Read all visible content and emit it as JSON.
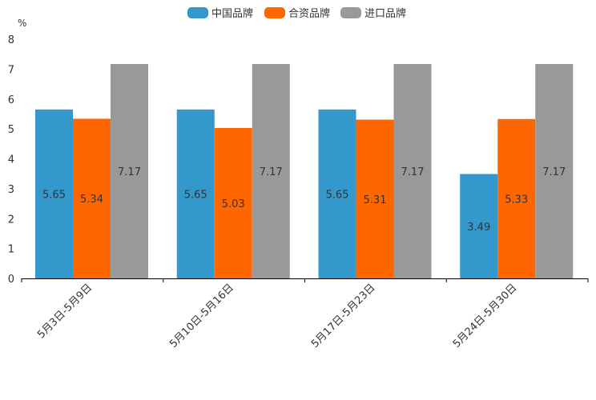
{
  "chart_data": {
    "type": "bar",
    "title": "",
    "xlabel": "",
    "ylabel": "%",
    "ylim": [
      0,
      8
    ],
    "yticks": [
      0,
      1,
      2,
      3,
      4,
      5,
      6,
      7,
      8
    ],
    "grid": false,
    "legend_position": "top-center",
    "categories": [
      "5月3日-5月9日",
      "5月10日-5月16日",
      "5月17日-5月23日",
      "5月24日-5月30日"
    ],
    "series": [
      {
        "name": "中国品牌",
        "color": "#3399cc",
        "values": [
          5.65,
          5.65,
          5.65,
          3.49
        ]
      },
      {
        "name": "合资品牌",
        "color": "#ff6600",
        "values": [
          5.34,
          5.03,
          5.31,
          5.33
        ]
      },
      {
        "name": "进口品牌",
        "color": "#999999",
        "values": [
          7.17,
          7.17,
          7.17,
          7.17
        ]
      }
    ]
  }
}
